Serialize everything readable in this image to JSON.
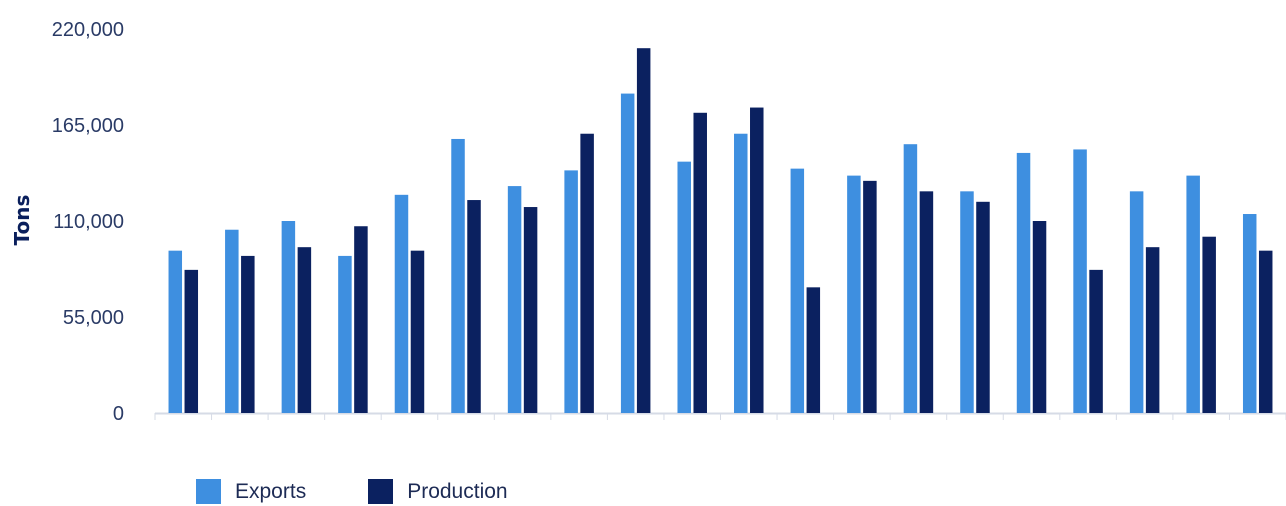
{
  "chart_data": {
    "type": "bar",
    "title": "",
    "xlabel": "",
    "ylabel": "Tons",
    "ylim": [
      0,
      220000
    ],
    "y_ticks": [
      "0",
      "55,000",
      "110,000",
      "165,000",
      "220,000"
    ],
    "y_tick_values": [
      0,
      55000,
      110000,
      165000,
      220000
    ],
    "categories": [
      "",
      "",
      "",
      "",
      "",
      "",
      "",
      "",
      "",
      "",
      "",
      "",
      "",
      "",
      "",
      "",
      "",
      "",
      "",
      ""
    ],
    "series": [
      {
        "name": "Exports",
        "color": "#3e8fe0",
        "values": [
          93000,
          105000,
          110000,
          90000,
          125000,
          157000,
          130000,
          139000,
          183000,
          144000,
          160000,
          140000,
          136000,
          154000,
          127000,
          149000,
          151000,
          127000,
          136000,
          114000
        ]
      },
      {
        "name": "Production",
        "color": "#0b2160",
        "values": [
          82000,
          90000,
          95000,
          107000,
          93000,
          122000,
          118000,
          160000,
          209000,
          172000,
          175000,
          72000,
          133000,
          127000,
          121000,
          110000,
          82000,
          95000,
          101000,
          93000
        ]
      }
    ],
    "grid": false,
    "legend_position": "bottom-left"
  }
}
